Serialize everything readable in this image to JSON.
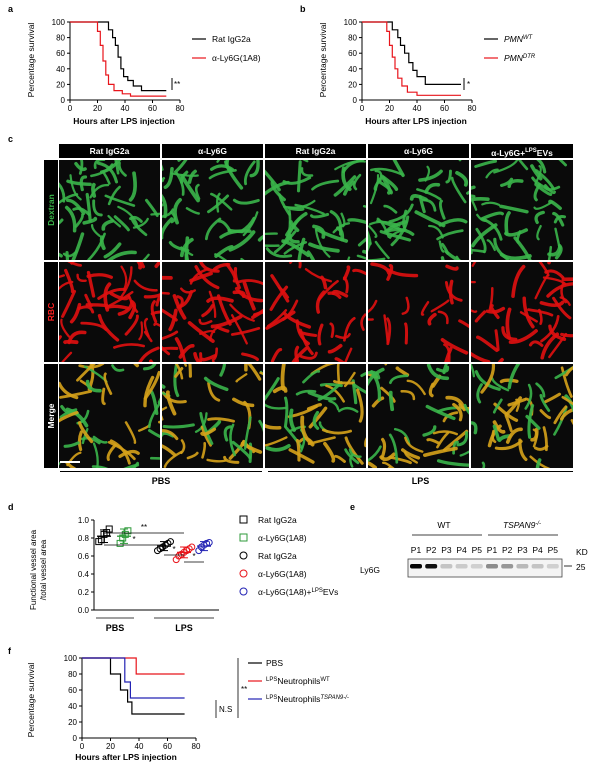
{
  "panel_labels": {
    "a": "a",
    "b": "b",
    "c": "c",
    "d": "d",
    "e": "e",
    "f": "f"
  },
  "sig": {
    "a": "**",
    "b": "*",
    "d1": "*",
    "d2": "**",
    "d3": "*",
    "d4": "*",
    "f_ns": "N.S",
    "f_sig": "**"
  },
  "panel_c": {
    "columns": [
      "Rat IgG2a",
      "α-Ly6G",
      "Rat IgG2a",
      "α-Ly6G",
      "α-Ly6G+LPSEVs"
    ],
    "col5": {
      "pre": "α-Ly6G+",
      "sup": "LPS",
      "post": "EVs"
    },
    "rows": [
      "Dextran",
      "RBC",
      "Merge"
    ],
    "groups": [
      "PBS",
      "LPS"
    ]
  },
  "panel_e": {
    "groups": [
      "WT",
      "TSPAN9"
    ],
    "group2_sup": "-/-",
    "lanes": [
      "P1",
      "P2",
      "P3",
      "P4",
      "P5",
      "P1",
      "P2",
      "P3",
      "P4",
      "P5"
    ],
    "kd_label": "KD",
    "kd_value": "25",
    "band_label": "Ly6G",
    "band_intensity": [
      1.0,
      0.95,
      0.15,
      0.12,
      0.1,
      0.4,
      0.35,
      0.2,
      0.15,
      0.1
    ]
  },
  "colors": {
    "black": "#000000",
    "red": "#e8141b",
    "green": "#2e9a3a",
    "blue": "#2323b4",
    "dextran": "#3ab54a",
    "rbc": "#e01010"
  },
  "chart_data": [
    {
      "panel": "a",
      "type": "line",
      "xlabel": "Hours after LPS injection",
      "ylabel": "Percentage survival",
      "xlim": [
        0,
        80
      ],
      "ylim": [
        0,
        100
      ],
      "xticks": [
        0,
        20,
        40,
        60,
        80
      ],
      "yticks": [
        0,
        20,
        40,
        60,
        80,
        100
      ],
      "series": [
        {
          "name": "Rat IgG2a",
          "color": "#000000",
          "steps": [
            [
              0,
              100
            ],
            [
              28,
              100
            ],
            [
              28,
              90
            ],
            [
              31,
              90
            ],
            [
              31,
              80
            ],
            [
              33,
              80
            ],
            [
              33,
              70
            ],
            [
              35,
              70
            ],
            [
              35,
              55
            ],
            [
              37,
              55
            ],
            [
              37,
              40
            ],
            [
              39,
              40
            ],
            [
              39,
              30
            ],
            [
              42,
              30
            ],
            [
              42,
              25
            ],
            [
              46,
              25
            ],
            [
              46,
              18
            ],
            [
              52,
              18
            ],
            [
              52,
              12
            ],
            [
              70,
              12
            ]
          ]
        },
        {
          "name": "α-Ly6G(1A8)",
          "color": "#e8141b",
          "steps": [
            [
              0,
              100
            ],
            [
              20,
              100
            ],
            [
              20,
              88
            ],
            [
              22,
              88
            ],
            [
              22,
              70
            ],
            [
              24,
              70
            ],
            [
              24,
              50
            ],
            [
              26,
              50
            ],
            [
              26,
              32
            ],
            [
              28,
              32
            ],
            [
              28,
              20
            ],
            [
              32,
              20
            ],
            [
              32,
              12
            ],
            [
              38,
              12
            ],
            [
              38,
              8
            ],
            [
              44,
              8
            ],
            [
              44,
              5
            ],
            [
              70,
              5
            ]
          ]
        }
      ]
    },
    {
      "panel": "b",
      "type": "line",
      "xlabel": "Hours after LPS injection",
      "ylabel": "Percentage survival",
      "xlim": [
        0,
        80
      ],
      "ylim": [
        0,
        100
      ],
      "xticks": [
        0,
        20,
        40,
        60,
        80
      ],
      "yticks": [
        0,
        20,
        40,
        60,
        80,
        100
      ],
      "series": [
        {
          "name": "PMNWT",
          "label_base": "PMN",
          "label_sup": "WT",
          "color": "#000000",
          "steps": [
            [
              0,
              100
            ],
            [
              22,
              100
            ],
            [
              22,
              90
            ],
            [
              26,
              90
            ],
            [
              26,
              80
            ],
            [
              28,
              80
            ],
            [
              28,
              70
            ],
            [
              31,
              70
            ],
            [
              31,
              60
            ],
            [
              34,
              60
            ],
            [
              34,
              48
            ],
            [
              37,
              48
            ],
            [
              37,
              38
            ],
            [
              40,
              38
            ],
            [
              40,
              30
            ],
            [
              46,
              30
            ],
            [
              46,
              20
            ],
            [
              72,
              20
            ]
          ]
        },
        {
          "name": "PMNDTR",
          "label_base": "PMN",
          "label_sup": "DTR",
          "color": "#e8141b",
          "steps": [
            [
              0,
              100
            ],
            [
              18,
              100
            ],
            [
              18,
              88
            ],
            [
              20,
              88
            ],
            [
              20,
              70
            ],
            [
              22,
              70
            ],
            [
              22,
              55
            ],
            [
              24,
              55
            ],
            [
              24,
              40
            ],
            [
              26,
              40
            ],
            [
              26,
              28
            ],
            [
              29,
              28
            ],
            [
              29,
              18
            ],
            [
              33,
              18
            ],
            [
              33,
              10
            ],
            [
              40,
              10
            ],
            [
              40,
              6
            ],
            [
              72,
              6
            ]
          ]
        }
      ]
    },
    {
      "panel": "d",
      "type": "scatter",
      "ylabel_line1": "Functional vessel area",
      "ylabel_line2": "/total  vessel area",
      "ylim": [
        0,
        1.0
      ],
      "yticks": [
        0.0,
        0.2,
        0.4,
        0.6,
        0.8,
        1.0
      ],
      "group_labels": [
        "PBS",
        "LPS"
      ],
      "series": [
        {
          "name": "Rat IgG2a",
          "marker": "square",
          "color": "#000000",
          "mean": 0.82,
          "sd": 0.07,
          "values": [
            0.76,
            0.78,
            0.84,
            0.86,
            0.9
          ]
        },
        {
          "name": "α-Ly6G(1A8)",
          "marker": "square",
          "color": "#2e9a3a",
          "mean": 0.82,
          "sd": 0.08,
          "values": [
            0.74,
            0.8,
            0.84,
            0.88
          ]
        },
        {
          "name": "Rat IgG2a",
          "marker": "circle",
          "color": "#000000",
          "mean": 0.71,
          "sd": 0.05,
          "values": [
            0.66,
            0.68,
            0.7,
            0.72,
            0.74,
            0.76
          ]
        },
        {
          "name": "α-Ly6G(1A8)",
          "marker": "circle",
          "color": "#e8141b",
          "mean": 0.64,
          "sd": 0.06,
          "values": [
            0.56,
            0.6,
            0.62,
            0.64,
            0.66,
            0.68,
            0.7
          ]
        },
        {
          "name": "α-Ly6G(1A8)+LPSEVs",
          "label_base": "α-Ly6G(1A8)+",
          "label_sup": "LPS",
          "label_post": "EVs",
          "marker": "circle",
          "color": "#2323b4",
          "mean": 0.71,
          "sd": 0.05,
          "values": [
            0.66,
            0.7,
            0.72,
            0.74,
            0.75
          ]
        }
      ]
    },
    {
      "panel": "f",
      "type": "line",
      "xlabel": "Hours after LPS injection",
      "ylabel": "Percentage survival",
      "xlim": [
        0,
        80
      ],
      "ylim": [
        0,
        100
      ],
      "xticks": [
        0,
        20,
        40,
        60,
        80
      ],
      "yticks": [
        0,
        20,
        40,
        60,
        80,
        100
      ],
      "series": [
        {
          "name": "PBS",
          "color": "#000000",
          "steps": [
            [
              0,
              100
            ],
            [
              20,
              100
            ],
            [
              20,
              80
            ],
            [
              27,
              80
            ],
            [
              27,
              60
            ],
            [
              32,
              60
            ],
            [
              32,
              45
            ],
            [
              35,
              45
            ],
            [
              35,
              30
            ],
            [
              72,
              30
            ]
          ]
        },
        {
          "name": "LPSNeutrophilsWT",
          "label_sup1": "LPS",
          "label_base": "Neutrophils",
          "label_sup2": "WT",
          "color": "#e8141b",
          "steps": [
            [
              0,
              100
            ],
            [
              38,
              100
            ],
            [
              38,
              80
            ],
            [
              72,
              80
            ]
          ]
        },
        {
          "name": "LPSNeutrophilsTSPAN9-/-",
          "label_sup1": "LPS",
          "label_base": "Neutrophils",
          "label_sup2": "TSPAN9-/-",
          "color": "#2323b4",
          "steps": [
            [
              0,
              100
            ],
            [
              30,
              100
            ],
            [
              30,
              70
            ],
            [
              34,
              70
            ],
            [
              34,
              50
            ],
            [
              72,
              50
            ]
          ]
        }
      ]
    }
  ]
}
